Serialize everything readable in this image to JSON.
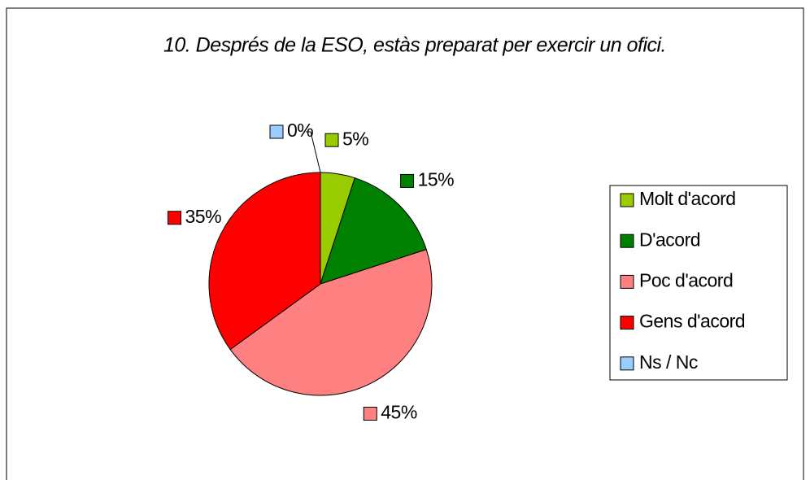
{
  "chart_data": {
    "type": "pie",
    "title": "10. Després de la ESO, estàs preparat per exercir un ofici.",
    "categories": [
      "Molt d'acord",
      "D'acord",
      "Poc d'acord",
      "Gens d'acord",
      "Ns / Nc"
    ],
    "values": [
      5,
      15,
      45,
      35,
      0
    ],
    "value_labels": [
      "5%",
      "15%",
      "45%",
      "35%",
      "0%"
    ],
    "colors": [
      "#99cc00",
      "#008000",
      "#ff8080",
      "#ff0000",
      "#99ccff"
    ],
    "legend": "right"
  }
}
